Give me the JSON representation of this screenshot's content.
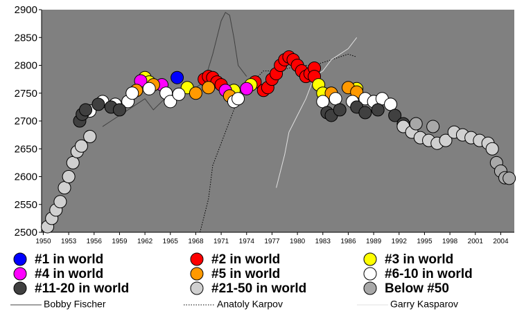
{
  "chart_data": {
    "type": "scatter",
    "xlim": [
      1949.8,
      2005.6
    ],
    "ylim": [
      2500,
      2900
    ],
    "xticks": [
      1950,
      1953,
      1956,
      1959,
      1962,
      1965,
      1968,
      1971,
      1974,
      1977,
      1980,
      1983,
      1986,
      1989,
      1992,
      1995,
      1998,
      2001,
      2004
    ],
    "yticks": [
      2500,
      2550,
      2600,
      2650,
      2700,
      2750,
      2800,
      2850,
      2900
    ],
    "plot_background": "#808080",
    "series": [
      {
        "name": "#1 in world",
        "color": "#0000ff",
        "style": "marker",
        "x": [
          1965.8
        ],
        "y": [
          2778
        ]
      },
      {
        "name": "#2 in world",
        "color": "#ff0000",
        "style": "marker",
        "x": [
          1969,
          1969.5,
          1970,
          1970.5,
          1971,
          1975,
          1976,
          1976.5,
          1977,
          1977.5,
          1978,
          1978.5,
          1979,
          1979.5,
          1980,
          1980.5,
          1981,
          1981.5,
          1982,
          1982
        ],
        "y": [
          2775,
          2780,
          2778,
          2770,
          2765,
          2770,
          2755,
          2760,
          2775,
          2785,
          2800,
          2810,
          2815,
          2810,
          2800,
          2790,
          2780,
          2785,
          2795,
          2780
        ]
      },
      {
        "name": "#3 in world",
        "color": "#ffff00",
        "style": "marker",
        "x": [
          1962,
          1962.5,
          1967,
          1972.5,
          1974.5,
          1982.5,
          1983,
          1987
        ],
        "y": [
          2778,
          2770,
          2760,
          2755,
          2765,
          2765,
          2750,
          2758
        ]
      },
      {
        "name": "#4 in world",
        "color": "#ff00ff",
        "style": "marker",
        "x": [
          1961.5,
          1964,
          1971.5,
          1974
        ],
        "y": [
          2772,
          2765,
          2755,
          2758
        ]
      },
      {
        "name": "#5 in world",
        "color": "#ff9900",
        "style": "marker",
        "x": [
          1961,
          1963,
          1968,
          1969.5,
          1972,
          1984,
          1986,
          1987
        ],
        "y": [
          2755,
          2765,
          2750,
          2760,
          2745,
          2750,
          2760,
          2752
        ]
      },
      {
        "name": "#6-10 in world",
        "color": "#ffffff",
        "style": "marker",
        "x": [
          1955.5,
          1957,
          1958.5,
          1960,
          1960.5,
          1962.5,
          1964.5,
          1965,
          1966,
          1972.5,
          1973,
          1983,
          1984.5,
          1986.5,
          1988,
          1989,
          1990,
          1991
        ],
        "y": [
          2718,
          2735,
          2730,
          2735,
          2750,
          2758,
          2750,
          2735,
          2748,
          2735,
          2740,
          2735,
          2740,
          2735,
          2740,
          2735,
          2740,
          2730
        ]
      },
      {
        "name": "#11-20 in world",
        "color": "#404040",
        "style": "marker",
        "x": [
          1954.3,
          1954.6,
          1955,
          1956.5,
          1958,
          1959,
          1983.5,
          1984,
          1985,
          1987,
          1988,
          1989.5,
          1991.5,
          1992.5
        ],
        "y": [
          2700,
          2712,
          2720,
          2730,
          2725,
          2720,
          2715,
          2710,
          2720,
          2725,
          2715,
          2720,
          2710,
          2695
        ]
      },
      {
        "name": "#21-50 in world",
        "color": "#d0d0d0",
        "style": "marker",
        "x": [
          1950.5,
          1951,
          1951.5,
          1952,
          1952.5,
          1953,
          1953.5,
          1954,
          1954.5,
          1955.5,
          1992.5,
          1993.5,
          1994.5,
          1995.5,
          1996.5,
          1997.5,
          1998.5,
          1999.5,
          2000.5,
          2001.5,
          2002.5,
          2003
        ],
        "y": [
          2510,
          2525,
          2540,
          2555,
          2580,
          2600,
          2625,
          2645,
          2655,
          2672,
          2690,
          2680,
          2670,
          2665,
          2660,
          2665,
          2680,
          2675,
          2670,
          2665,
          2660,
          2650
        ]
      },
      {
        "name": "Below #50",
        "color": "#a8a8a8",
        "style": "marker",
        "x": [
          1994,
          1996,
          2003.5,
          2004,
          2004.5,
          2005
        ],
        "y": [
          2695,
          2690,
          2625,
          2610,
          2598,
          2597
        ]
      },
      {
        "name": "Bobby Fischer",
        "color": "#404040",
        "style": "solid",
        "x": [
          1957,
          1958,
          1960,
          1962,
          1963,
          1965,
          1967,
          1968,
          1969,
          1970,
          1970.5,
          1971,
          1971.5,
          1972,
          1972.5,
          1973,
          1974
        ],
        "y": [
          2690,
          2700,
          2720,
          2740,
          2720,
          2750,
          2760,
          2760,
          2770,
          2820,
          2850,
          2880,
          2895,
          2890,
          2850,
          2800,
          2780
        ]
      },
      {
        "name": "Anatoly Karpov",
        "color": "#000000",
        "style": "dotted",
        "x": [
          1968.5,
          1969.5,
          1970,
          1971,
          1972,
          1973,
          1974,
          1976,
          1978,
          1980,
          1982,
          1984,
          1986,
          1987
        ],
        "y": [
          2500,
          2560,
          2620,
          2660,
          2700,
          2740,
          2760,
          2790,
          2790,
          2800,
          2800,
          2810,
          2820,
          2815
        ]
      },
      {
        "name": "Garry Kasparov",
        "color": "#e0e0e0",
        "style": "solid",
        "x": [
          1977.5,
          1978.5,
          1979,
          1980,
          1981,
          1982,
          1983,
          1984,
          1985,
          1986,
          1987
        ],
        "y": [
          2580,
          2640,
          2680,
          2710,
          2740,
          2780,
          2790,
          2810,
          2820,
          2830,
          2850
        ]
      }
    ]
  }
}
